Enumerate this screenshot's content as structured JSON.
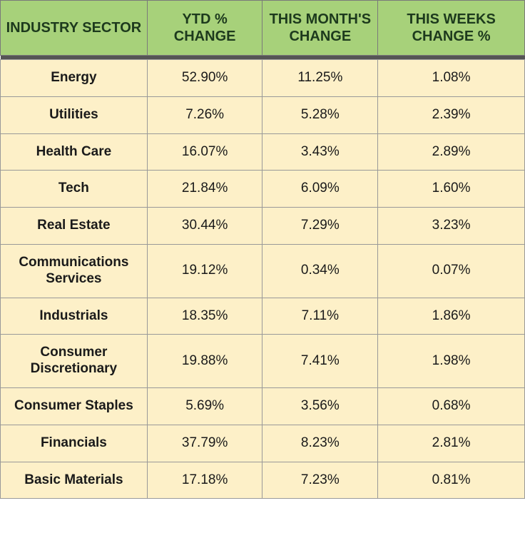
{
  "table": {
    "headers": [
      "INDUSTRY SECTOR",
      "YTD % CHANGE",
      "THIS MONTH'S CHANGE",
      "THIS WEEKS CHANGE %"
    ],
    "rows": [
      {
        "sector": "Energy",
        "ytd": "52.90%",
        "month": "11.25%",
        "week": "1.08%"
      },
      {
        "sector": "Utilities",
        "ytd": "7.26%",
        "month": "5.28%",
        "week": "2.39%"
      },
      {
        "sector": "Health Care",
        "ytd": "16.07%",
        "month": "3.43%",
        "week": "2.89%"
      },
      {
        "sector": "Tech",
        "ytd": "21.84%",
        "month": "6.09%",
        "week": "1.60%"
      },
      {
        "sector": "Real Estate",
        "ytd": "30.44%",
        "month": "7.29%",
        "week": "3.23%"
      },
      {
        "sector": "Communications Services",
        "ytd": "19.12%",
        "month": "0.34%",
        "week": "0.07%"
      },
      {
        "sector": "Industrials",
        "ytd": "18.35%",
        "month": "7.11%",
        "week": "1.86%"
      },
      {
        "sector": "Consumer Discretionary",
        "ytd": "19.88%",
        "month": "7.41%",
        "week": "1.98%"
      },
      {
        "sector": "Consumer Staples",
        "ytd": "5.69%",
        "month": "3.56%",
        "week": "0.68%"
      },
      {
        "sector": "Financials",
        "ytd": "37.79%",
        "month": "8.23%",
        "week": "2.81%"
      },
      {
        "sector": "Basic Materials",
        "ytd": "17.18%",
        "month": "7.23%",
        "week": "0.81%"
      }
    ],
    "colors": {
      "header_bg": "#a7d17a",
      "header_text": "#1d3a1d",
      "cell_bg": "#fdf0c8",
      "cell_text": "#1a1a1a",
      "border": "#999999",
      "divider": "#555555"
    },
    "font_sizes": {
      "header": 20,
      "body": 19
    }
  }
}
